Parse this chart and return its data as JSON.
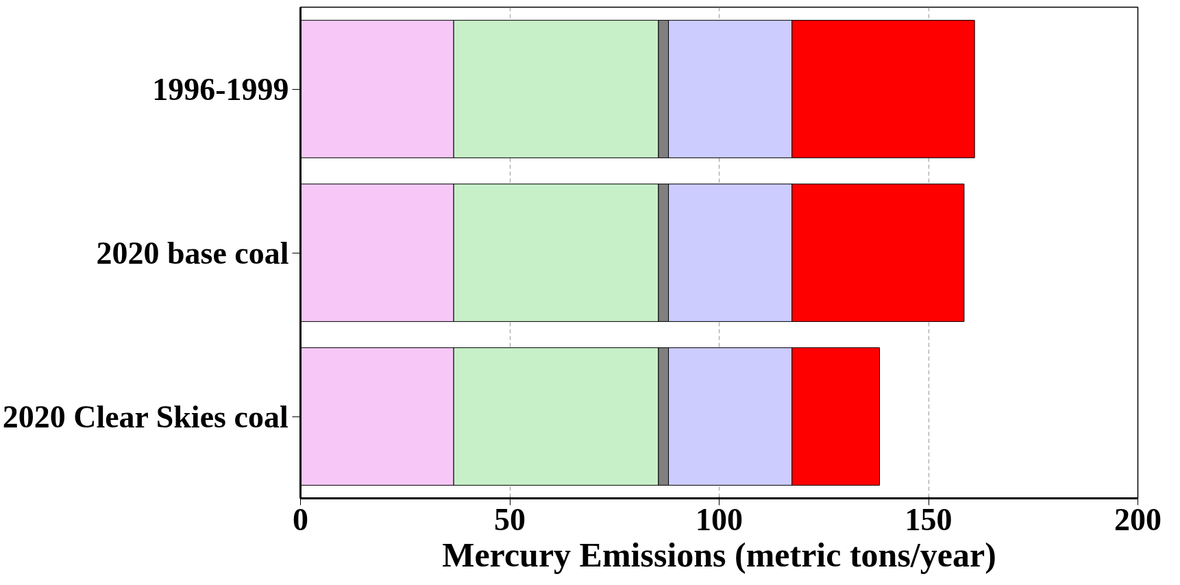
{
  "chart_data": {
    "type": "bar",
    "orientation": "horizontal",
    "stacked": true,
    "xlabel": "Mercury Emissions (metric tons/year)",
    "categories": [
      "1996-1999",
      "2020 base coal",
      "2020 Clear Skies coal"
    ],
    "series": [
      {
        "color": "#f7c8f7",
        "values": [
          36.6,
          36.6,
          36.6
        ]
      },
      {
        "color": "#c8f0c8",
        "values": [
          48.9,
          48.9,
          48.9
        ]
      },
      {
        "color": "#808080",
        "values": [
          2.4,
          2.4,
          2.4
        ]
      },
      {
        "color": "#ccccff",
        "values": [
          29.5,
          29.5,
          29.5
        ]
      },
      {
        "color": "#ff0000",
        "values": [
          43.6,
          41.1,
          20.9
        ]
      }
    ],
    "xlim": [
      0,
      200
    ],
    "xticks": [
      0,
      50,
      100,
      150,
      200
    ],
    "grid": "x"
  }
}
